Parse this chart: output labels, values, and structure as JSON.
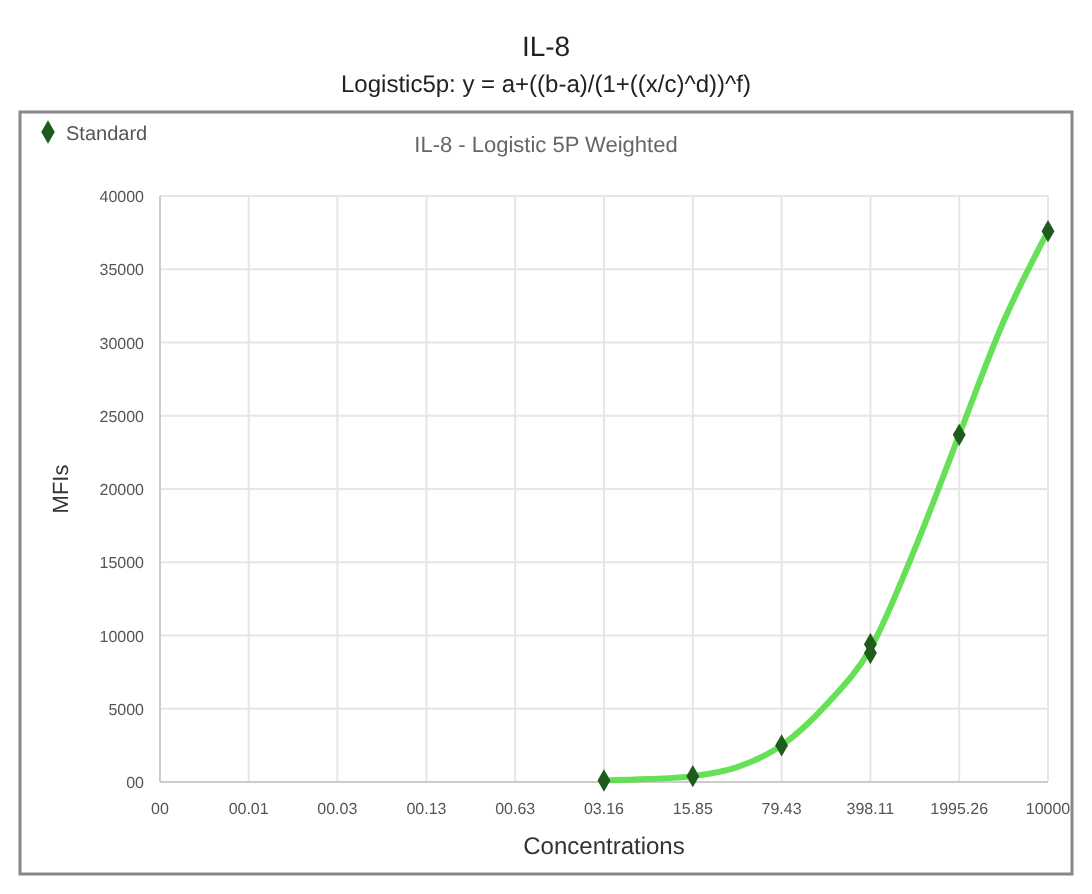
{
  "chart_data": {
    "type": "scatter",
    "title": "IL-8",
    "subtitle": "Logistic5p: y = a+((b-a)/(1+((x/c)^d))^f)",
    "annotations": [
      "IL-8 - Logistic 5P Weighted"
    ],
    "xlabel": "Concentrations",
    "ylabel": "MFIs",
    "log": "x",
    "xlim": [
      0.001,
      10000
    ],
    "xticks": [
      {
        "value": 0.001,
        "label": "00"
      },
      {
        "value": 0.005,
        "label": "00.01"
      },
      {
        "value": 0.025,
        "label": "00.03"
      },
      {
        "value": 0.126,
        "label": "00.13"
      },
      {
        "value": 0.631,
        "label": "00.63"
      },
      {
        "value": 3.16,
        "label": "03.16"
      },
      {
        "value": 15.85,
        "label": "15.85"
      },
      {
        "value": 79.43,
        "label": "79.43"
      },
      {
        "value": 398.11,
        "label": "398.11"
      },
      {
        "value": 1995.26,
        "label": "1995.26"
      },
      10000
    ],
    "ylim": [
      0,
      40000
    ],
    "yticks": [
      {
        "value": 0,
        "label": "00"
      },
      5000,
      10000,
      15000,
      20000,
      25000,
      30000,
      35000,
      40000
    ],
    "grid": true,
    "legend": "top left",
    "series": [
      {
        "type": "line",
        "color": "#55dd44",
        "marker": "none",
        "line_style": "solid",
        "x": [
          3.16,
          7,
          15.85,
          35,
          79.43,
          180,
          398.11,
          900,
          1995.26,
          4500,
          10000
        ],
        "values": [
          100,
          200,
          400,
          1000,
          2500,
          5300,
          9100,
          16000,
          23700,
          31500,
          37600
        ]
      },
      {
        "name": "Standard",
        "color": "#1e5c1e",
        "marker": "diamond",
        "x": [
          3.16,
          15.85,
          79.43,
          398.11,
          398.11,
          1995.26,
          10000
        ],
        "values": [
          100,
          400,
          2500,
          8800,
          9400,
          23700,
          37600
        ]
      }
    ]
  }
}
